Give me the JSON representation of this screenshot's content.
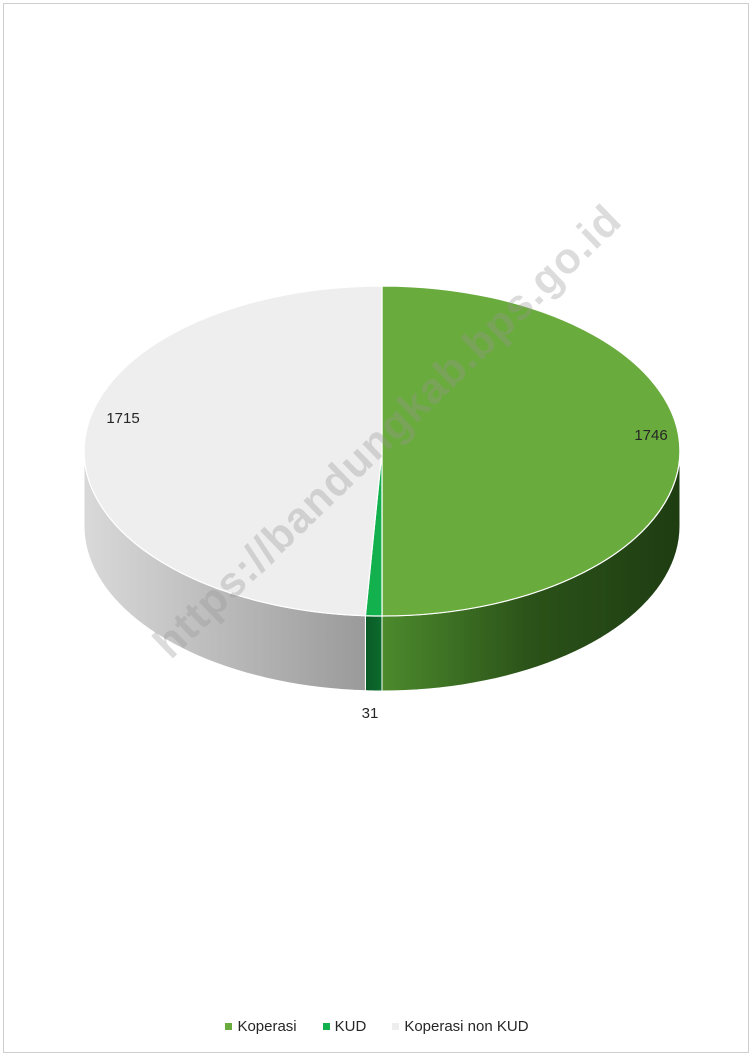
{
  "chart_data": {
    "type": "pie",
    "categories": [
      "Koperasi",
      "KUD",
      "Koperasi non KUD"
    ],
    "values": [
      1746,
      31,
      1715
    ],
    "data_labels": [
      "1746",
      "31",
      "1715"
    ],
    "colors": [
      "#6aab3d",
      "#12b14e",
      "#eeeeee"
    ],
    "side_colors": [
      "#2f5a1e",
      "#0d6b2e",
      "#b8b8b8"
    ],
    "style": "3d",
    "start": "12 o'clock",
    "direction": "clockwise",
    "legend_position": "bottom"
  },
  "legend": {
    "items": [
      {
        "label": "Koperasi",
        "color": "#6aab3d"
      },
      {
        "label": "KUD",
        "color": "#12b14e"
      },
      {
        "label": "Koperasi non KUD",
        "color": "#eeeeee"
      }
    ]
  },
  "watermark": {
    "text": "https://bandungkab.bps.go.id"
  }
}
